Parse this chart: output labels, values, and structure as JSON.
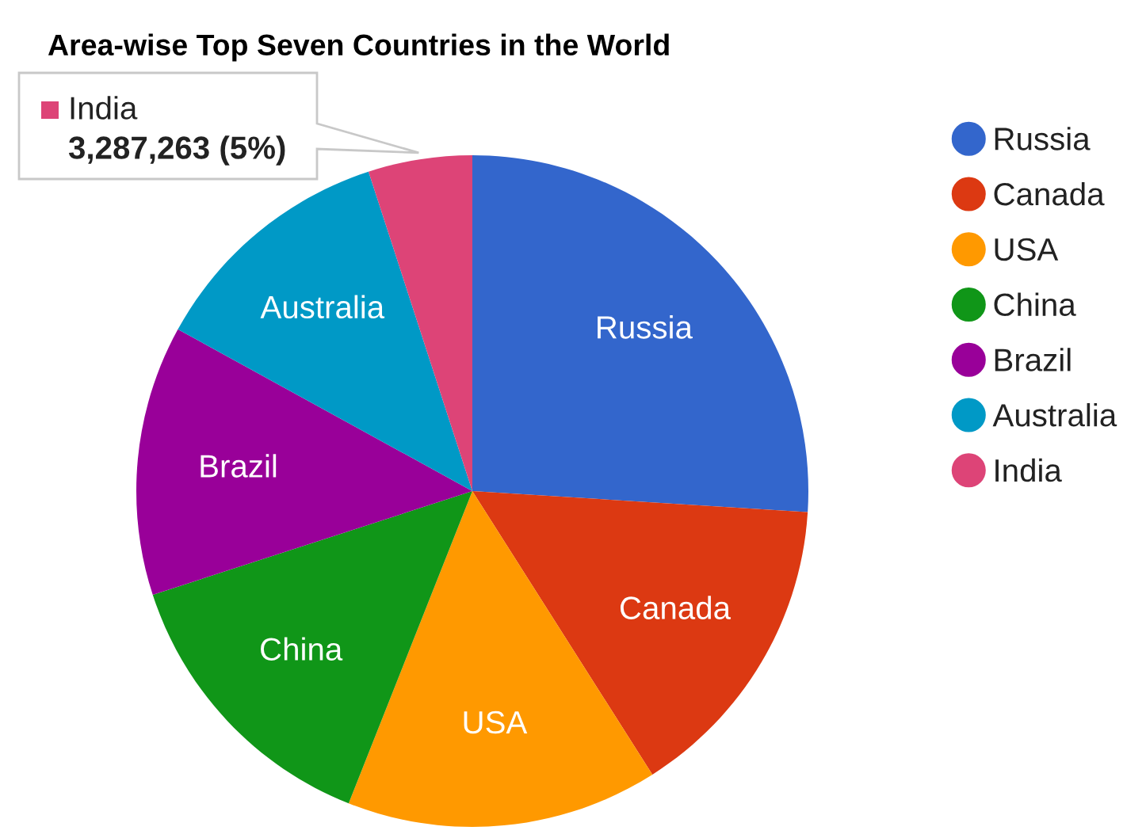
{
  "chart_data": {
    "type": "pie",
    "title": "Area-wise Top Seven Countries in the World",
    "categories": [
      "Russia",
      "Canada",
      "USA",
      "China",
      "Brazil",
      "Australia",
      "India"
    ],
    "values": [
      26,
      15,
      15,
      14,
      13,
      12,
      5
    ],
    "colors": [
      "#3366cc",
      "#dc3912",
      "#ff9900",
      "#109618",
      "#990099",
      "#0099c6",
      "#dd4477"
    ],
    "legend": "right",
    "annotations": [
      {
        "text": "India",
        "x": "India"
      },
      {
        "text": "3,287,263 (5%)",
        "x": "India"
      }
    ]
  }
}
